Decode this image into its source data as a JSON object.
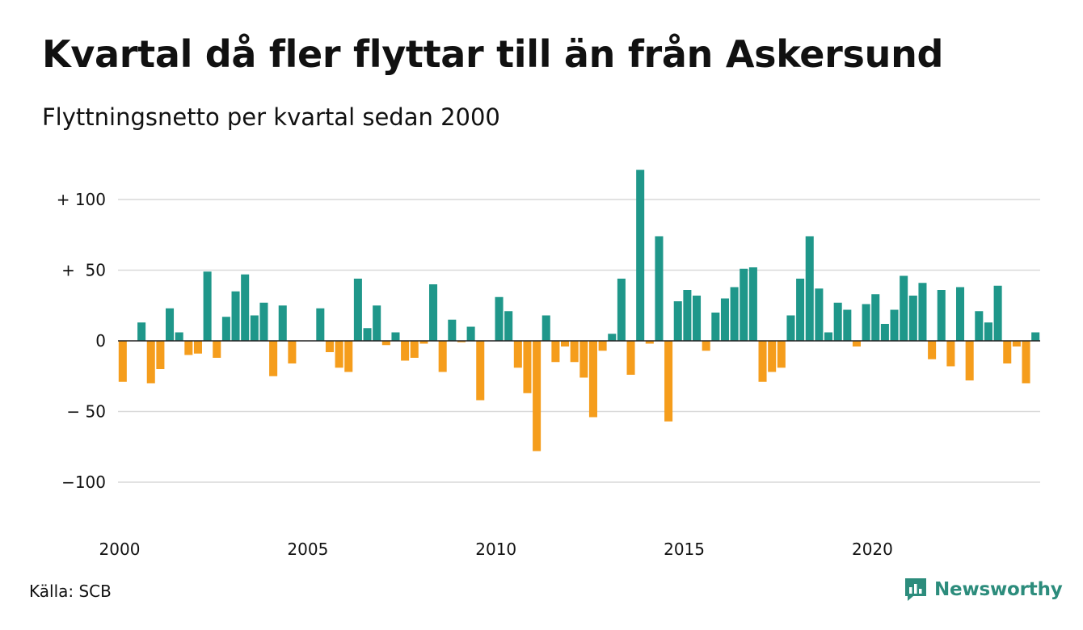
{
  "header": {
    "title": "Kvartal då fler flyttar till än från Askersund",
    "subtitle": "Flyttningsnetto per kvartal sedan 2000"
  },
  "footer": {
    "source": "Källa: SCB",
    "brand": "Newsworthy"
  },
  "icons": {
    "brand_logo": "newsworthy-chat-bar-icon"
  },
  "colors": {
    "positive": "#1f978a",
    "negative": "#f59d1c",
    "grid": "#d9d9d9",
    "zero_line": "#222222",
    "brand": "#2c8c7c"
  },
  "chart_data": {
    "type": "bar",
    "title": "Kvartal då fler flyttar till än från Askersund",
    "subtitle": "Flyttningsnetto per kvartal sedan 2000",
    "xlabel": "",
    "ylabel": "",
    "ylim": [
      -130,
      123
    ],
    "yticks": [
      {
        "value": 100,
        "label": "+ 100"
      },
      {
        "value": 50,
        "label": "+  50"
      },
      {
        "value": 0,
        "label": "0"
      },
      {
        "value": -50,
        "label": "− 50"
      },
      {
        "value": -100,
        "label": "−100"
      }
    ],
    "xticks": [
      {
        "year": 2000,
        "label": "2000"
      },
      {
        "year": 2005,
        "label": "2005"
      },
      {
        "year": 2010,
        "label": "2010"
      },
      {
        "year": 2015,
        "label": "2015"
      },
      {
        "year": 2020,
        "label": "2020"
      }
    ],
    "grid": true,
    "start_year": 2000,
    "values": [
      -29,
      0,
      13,
      -30,
      -20,
      23,
      6,
      -10,
      -9,
      49,
      -12,
      17,
      35,
      47,
      18,
      27,
      -25,
      25,
      -16,
      0,
      0,
      23,
      -8,
      -19,
      -22,
      44,
      9,
      25,
      -3,
      6,
      -14,
      -12,
      -2,
      40,
      -22,
      15,
      -1,
      10,
      -42,
      0,
      31,
      21,
      -19,
      -37,
      -78,
      18,
      -15,
      -4,
      -15,
      -26,
      -54,
      -7,
      5,
      44,
      -24,
      121,
      -2,
      74,
      -57,
      28,
      36,
      32,
      -7,
      20,
      30,
      38,
      51,
      52,
      -29,
      -22,
      -19,
      18,
      44,
      74,
      37,
      6,
      27,
      22,
      -4,
      26,
      33,
      12,
      22,
      46,
      32,
      41,
      -13,
      36,
      -18,
      38,
      -28,
      21,
      13,
      39,
      -16,
      -4,
      -30,
      6
    ]
  }
}
